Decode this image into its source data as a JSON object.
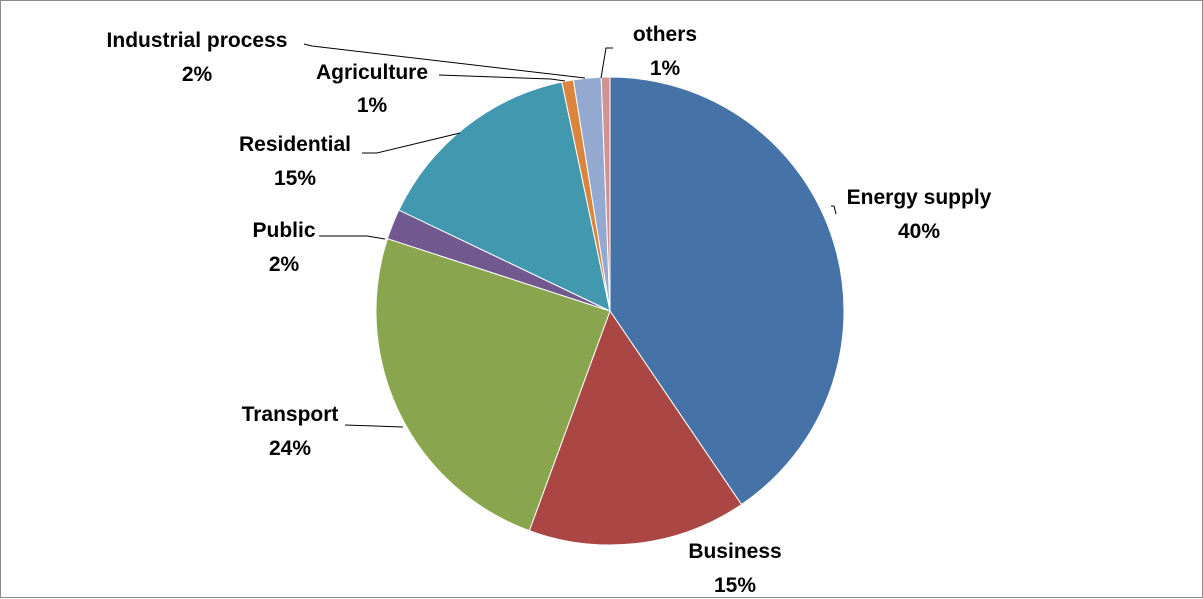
{
  "chart_data": {
    "type": "pie",
    "title": "",
    "start_angle_deg": 0,
    "direction": "clockwise",
    "slices": [
      {
        "name": "Energy supply",
        "label": "40%",
        "value": 40.5,
        "color": "#4572A7"
      },
      {
        "name": "Business",
        "label": "15%",
        "value": 15.1,
        "color": "#AA4643"
      },
      {
        "name": "Transport",
        "label": "24%",
        "value": 24.4,
        "color": "#89A54E"
      },
      {
        "name": "Public",
        "label": "2%",
        "value": 2.1,
        "color": "#71588F"
      },
      {
        "name": "Residential",
        "label": "15%",
        "value": 14.6,
        "color": "#4198AF"
      },
      {
        "name": "Agriculture",
        "label": "1%",
        "value": 0.8,
        "color": "#DB843D"
      },
      {
        "name": "Industrial process",
        "label": "2%",
        "value": 1.9,
        "color": "#93A9CF"
      },
      {
        "name": "others",
        "label": "1%",
        "value": 0.6,
        "color": "#D19392"
      }
    ]
  }
}
